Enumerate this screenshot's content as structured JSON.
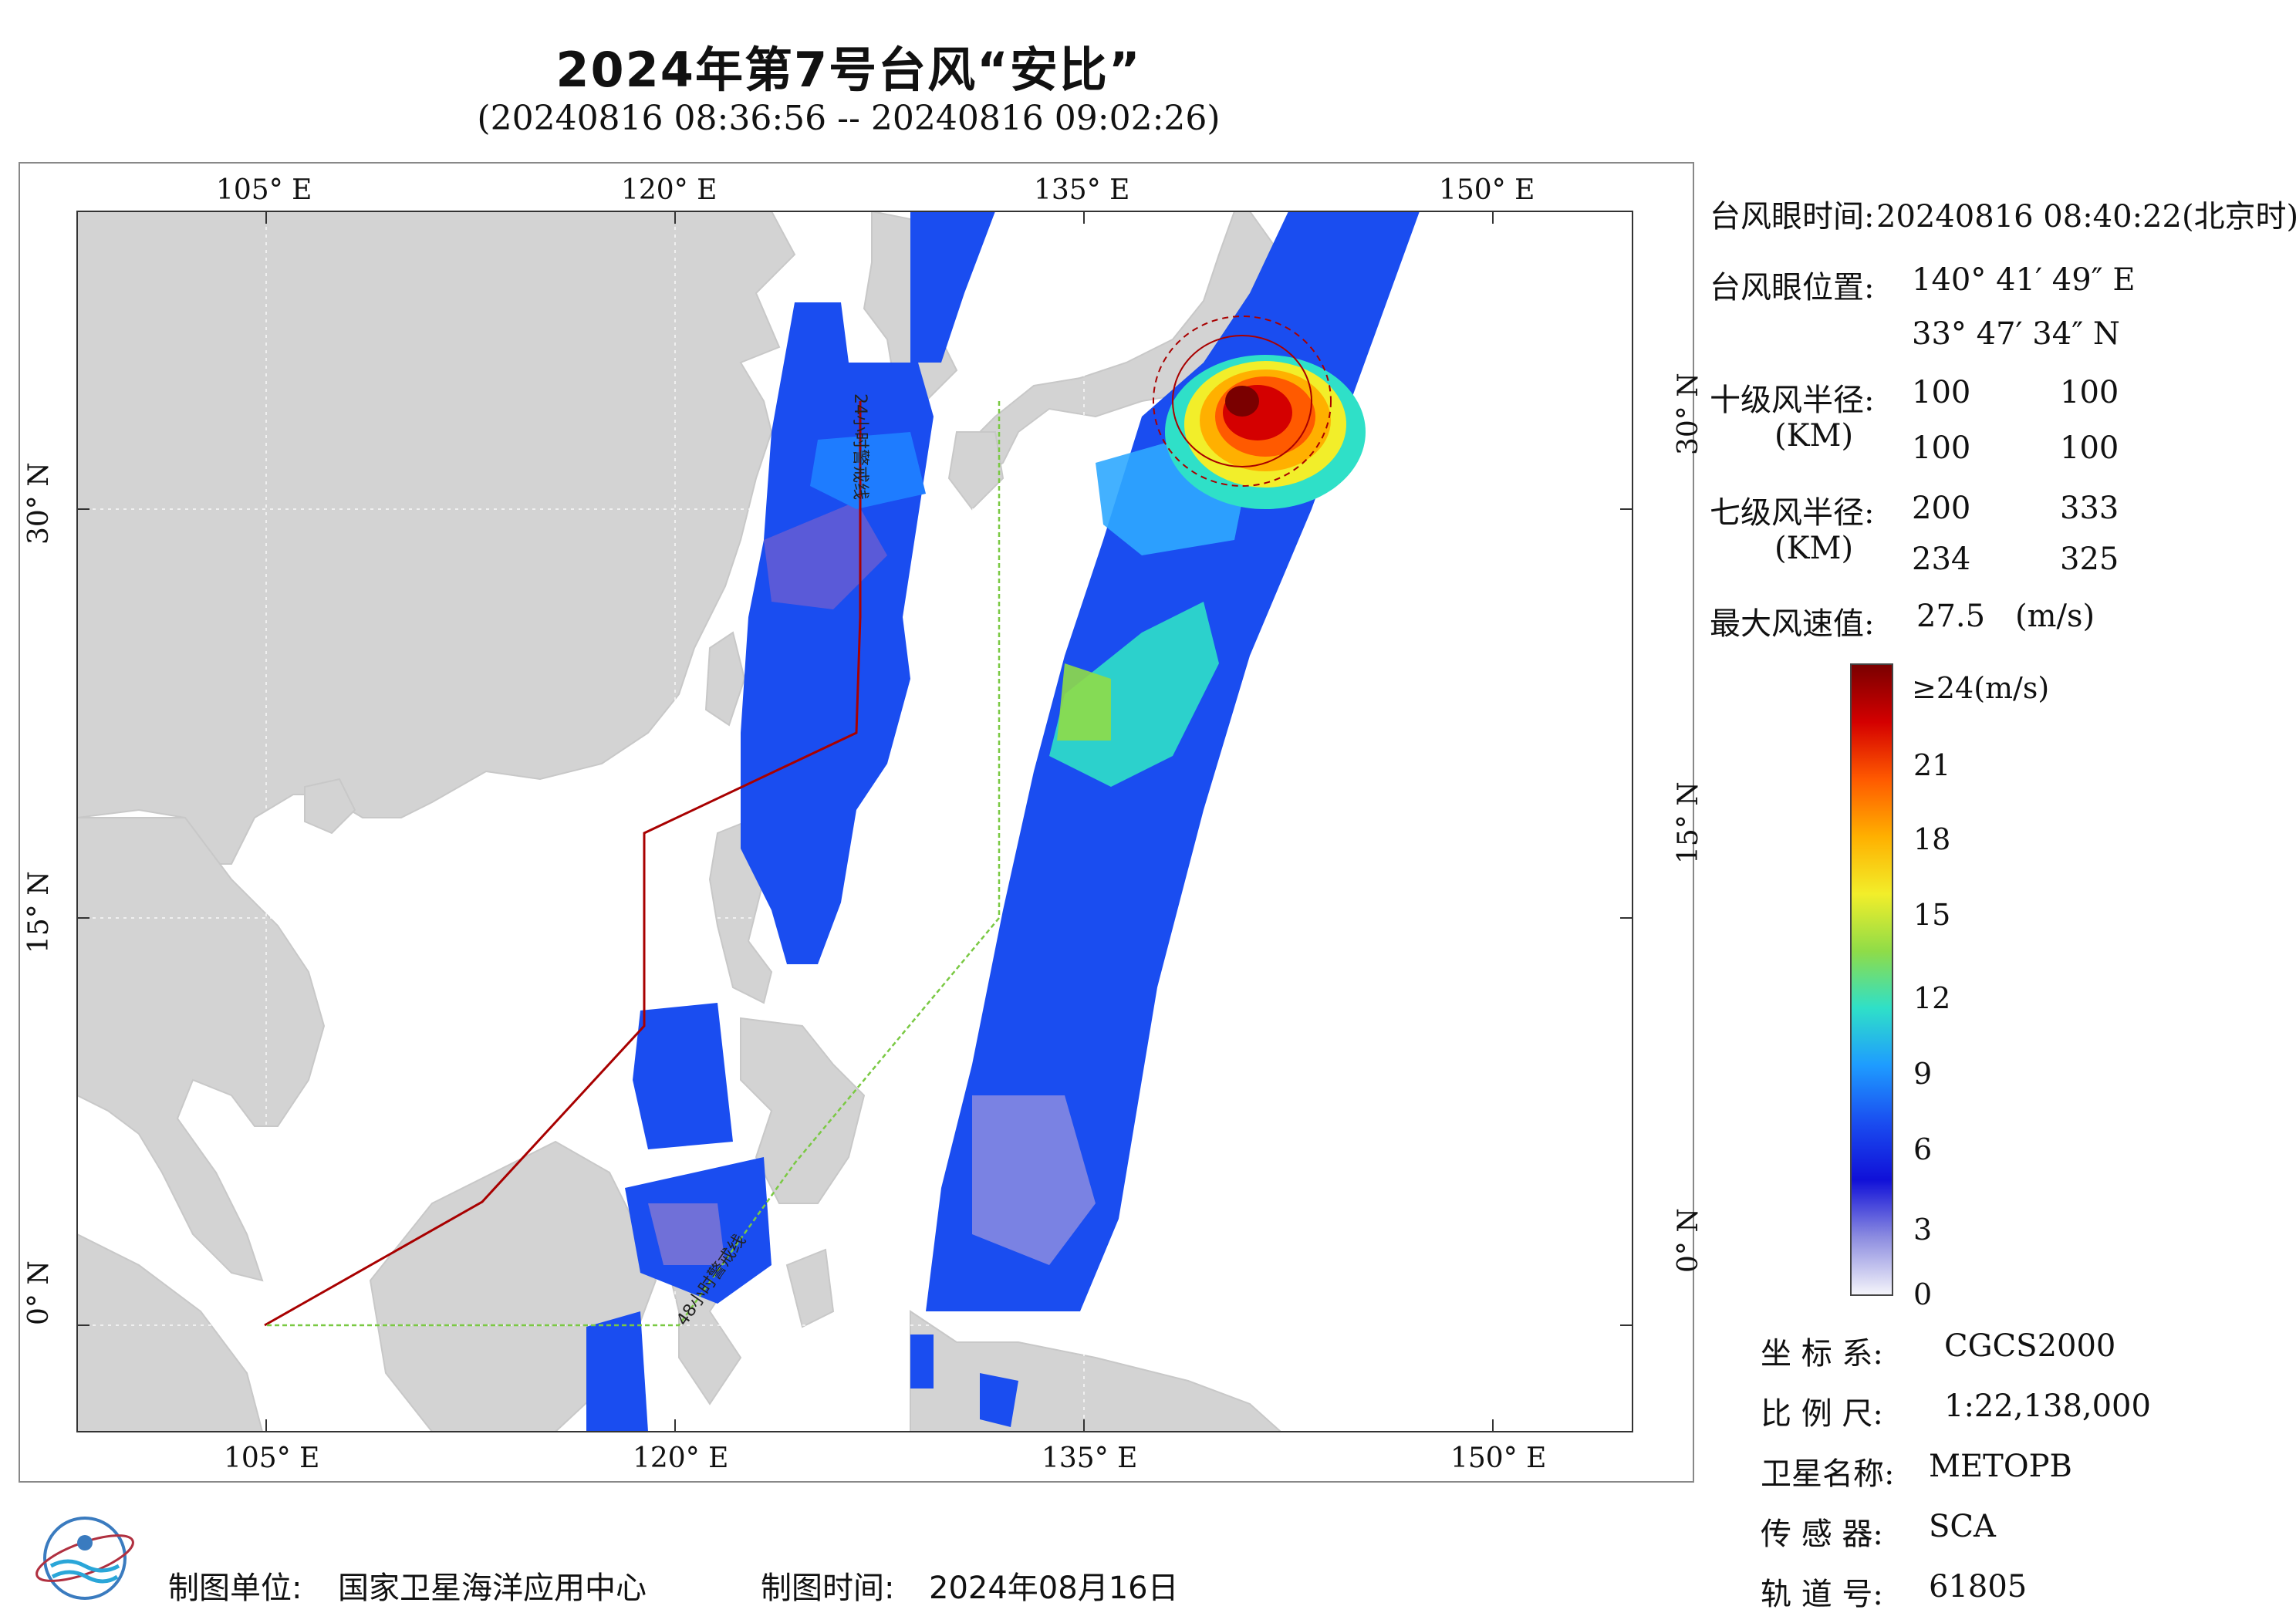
{
  "title": "2024年第7号台风“安比”",
  "subtitle": "(20240816 08:36:56 -- 20240816 09:02:26)",
  "map": {
    "lon_labels": [
      "105° E",
      "120° E",
      "135° E",
      "150° E"
    ],
    "lat_labels": [
      "0° N",
      "15° N",
      "30° N"
    ],
    "line_24h": "24小时警戒线",
    "line_48h": "48小时警戒线"
  },
  "info": {
    "eye_time_label": "台风眼时间:",
    "eye_time_value": "20240816 08:40:22(北京时)",
    "eye_pos_label": "台风眼位置:",
    "eye_lon": "140° 41′ 49″ E",
    "eye_lat": "33° 47′ 34″ N",
    "r10_label": "十级风半径:",
    "r10_unit": "(KM)",
    "r10_values": [
      "100",
      "100",
      "100",
      "100"
    ],
    "r7_label": "七级风半径:",
    "r7_unit": "(KM)",
    "r7_values": [
      "200",
      "333",
      "234",
      "325"
    ],
    "max_wind_label": "最大风速值:",
    "max_wind_value": "27.5",
    "max_wind_unit": "(m/s)"
  },
  "colorbar": {
    "ticks": [
      "≥24(m/s)",
      "21",
      "18",
      "15",
      "12",
      "9",
      "6",
      "3",
      "0"
    ],
    "colors": [
      "#7a0000",
      "#d40000",
      "#ff5a00",
      "#ffb000",
      "#f2ee2a",
      "#8fdc48",
      "#2fe0c8",
      "#1e9cff",
      "#1a4df0",
      "#1010d8",
      "#8c8ce0",
      "#f4f4fa"
    ]
  },
  "meta": {
    "crs_label": "坐 标 系:",
    "crs_value": "CGCS2000",
    "scale_label": "比 例 尺:",
    "scale_value": "1:22,138,000",
    "sat_label": "卫星名称:",
    "sat_value": "METOPB",
    "sensor_label": "传 感 器:",
    "sensor_value": "SCA",
    "orbit_label": "轨 道 号:",
    "orbit_value": "61805"
  },
  "footer": {
    "unit_label": "制图单位:",
    "unit_value": "国家卫星海洋应用中心",
    "time_label": "制图时间:",
    "time_value": "2024年08月16日"
  }
}
